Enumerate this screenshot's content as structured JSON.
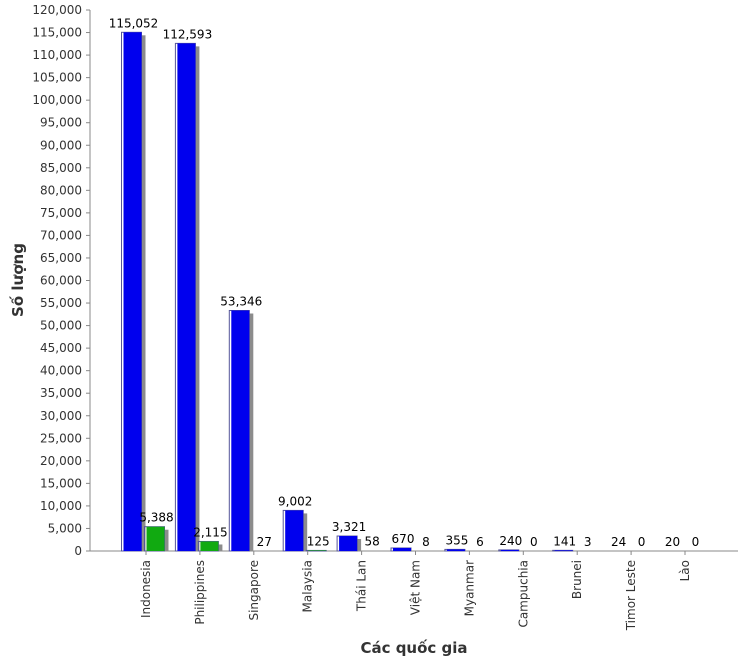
{
  "chart_data": {
    "type": "bar",
    "title": "",
    "xlabel": "Các quốc gia",
    "ylabel": "Số lượng",
    "categories": [
      "Indonesia",
      "Philippines",
      "Singapore",
      "Malaysia",
      "Thái Lan",
      "Việt Nam",
      "Myanmar",
      "Campuchia",
      "Brunei",
      "Timor Leste",
      "Lào"
    ],
    "series": [
      {
        "values": [
          115052,
          112593,
          53346,
          9002,
          3321,
          670,
          355,
          240,
          141,
          24,
          20
        ],
        "color": "#0000ee"
      },
      {
        "values": [
          5388,
          2115,
          27,
          125,
          58,
          8,
          6,
          0,
          3,
          0,
          0
        ],
        "color": "#11aa11"
      }
    ],
    "data_labels": [
      [
        "115,052",
        "112,593",
        "53,346",
        "9,002",
        "3,321",
        "670",
        "355",
        "240",
        "141",
        "24",
        "20"
      ],
      [
        "5,388",
        "2,115",
        "27",
        "125",
        "58",
        "8",
        "6",
        "0",
        "3",
        "0",
        "0"
      ]
    ],
    "ylim": [
      0,
      120000
    ],
    "yticks": [
      0,
      5000,
      10000,
      15000,
      20000,
      25000,
      30000,
      35000,
      40000,
      45000,
      50000,
      55000,
      60000,
      65000,
      70000,
      75000,
      80000,
      85000,
      90000,
      95000,
      100000,
      105000,
      110000,
      115000,
      120000
    ],
    "ytick_labels": [
      "0",
      "5,000",
      "10,000",
      "15,000",
      "20,000",
      "25,000",
      "30,000",
      "35,000",
      "40,000",
      "45,000",
      "50,000",
      "55,000",
      "60,000",
      "65,000",
      "70,000",
      "75,000",
      "80,000",
      "85,000",
      "90,000",
      "95,000",
      "100,000",
      "105,000",
      "110,000",
      "115,000",
      "120,000"
    ],
    "grid": false,
    "legend": "none"
  }
}
